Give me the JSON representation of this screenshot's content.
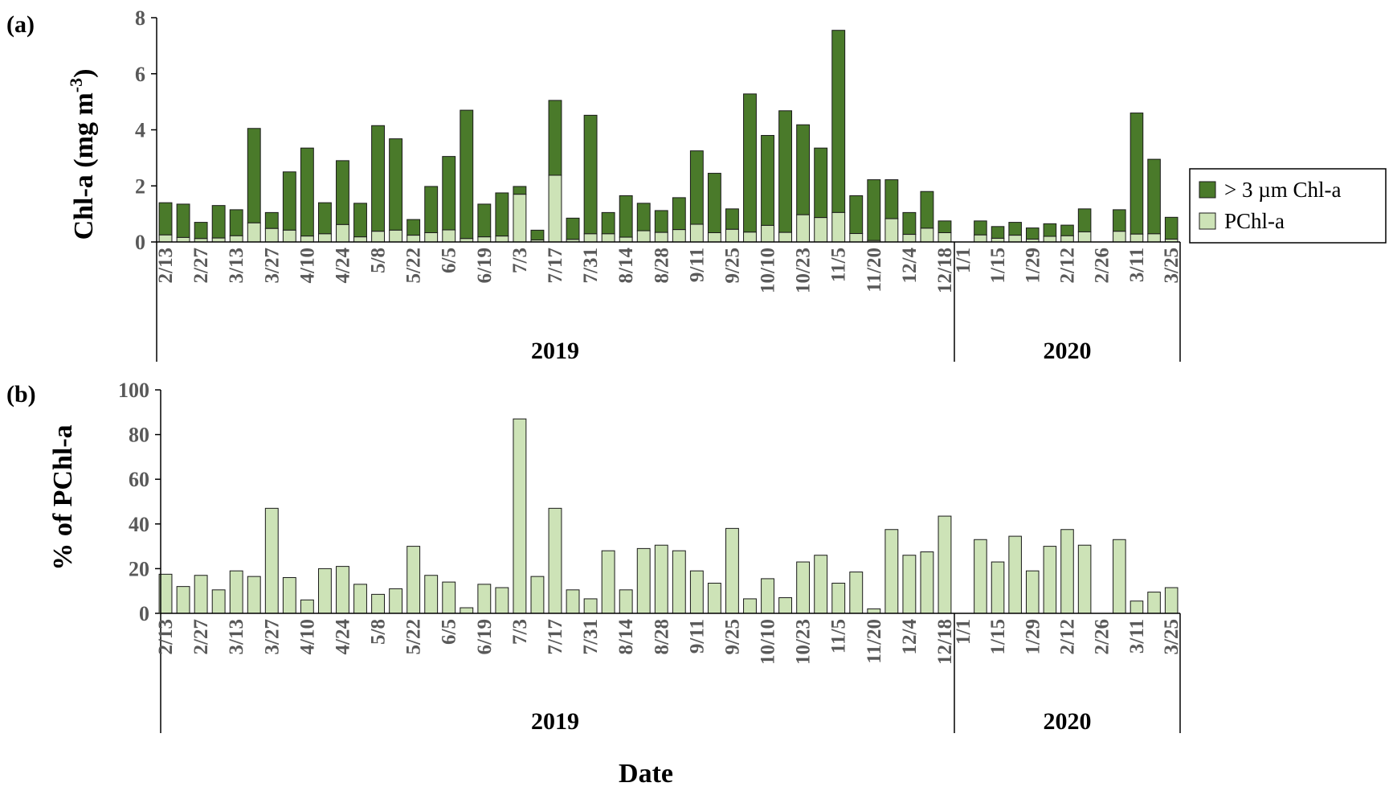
{
  "figure": {
    "xlabel": "Date"
  },
  "chart_data": [
    {
      "panel_label": "(a)",
      "type": "bar",
      "stacked": true,
      "ylabel_parts": [
        "Chl-a (mg m",
        "-3",
        ")"
      ],
      "ylim": [
        0,
        8
      ],
      "yticks": [
        0,
        2,
        4,
        6,
        8
      ],
      "legend_position": "right",
      "colors": {
        "large": "#4a7a2a",
        "pchl": "#cde3b7",
        "edge": "#1a1a1a"
      },
      "series": [
        {
          "name": "> 3 µm Chl-a",
          "key": "large"
        },
        {
          "name": "PChl-a",
          "key": "pchl"
        }
      ],
      "groups": [
        {
          "year": "2019",
          "tick_labels": [
            "2/13",
            "2/27",
            "3/13",
            "3/27",
            "4/10",
            "4/24",
            "5/8",
            "5/22",
            "6/5",
            "6/19",
            "7/3",
            "7/17",
            "7/31",
            "8/14",
            "8/28",
            "9/11",
            "9/25",
            "10/10",
            "10/23",
            "11/5",
            "11/20",
            "12/4",
            "12/18"
          ],
          "totals": [
            1.4,
            1.35,
            0.7,
            1.3,
            1.15,
            4.05,
            1.05,
            2.5,
            3.35,
            1.4,
            2.9,
            1.38,
            4.15,
            3.68,
            0.8,
            1.98,
            3.05,
            4.7,
            1.35,
            1.75,
            1.98,
            0.42,
            5.05,
            0.85,
            4.52,
            1.05,
            1.65,
            1.38,
            1.12,
            1.58,
            3.25,
            2.45,
            1.18,
            5.28,
            3.8,
            4.68,
            4.18,
            3.35,
            7.55,
            1.65,
            2.22,
            2.22,
            1.05,
            1.8,
            0.75
          ],
          "pchl": [
            0.25,
            0.16,
            0.12,
            0.14,
            0.22,
            0.68,
            0.48,
            0.42,
            0.21,
            0.29,
            0.62,
            0.18,
            0.38,
            0.42,
            0.24,
            0.33,
            0.43,
            0.12,
            0.18,
            0.21,
            1.7,
            0.07,
            2.38,
            0.09,
            0.29,
            0.29,
            0.17,
            0.4,
            0.34,
            0.44,
            0.63,
            0.33,
            0.45,
            0.35,
            0.59,
            0.34,
            0.97,
            0.87,
            1.05,
            0.3,
            0.05,
            0.83,
            0.27,
            0.49,
            0.33
          ]
        },
        {
          "year": "2020",
          "tick_labels": [
            "1/1",
            "1/15",
            "1/29",
            "2/12",
            "2/26",
            "3/11",
            "3/25"
          ],
          "totals": [
            0,
            0.75,
            0.55,
            0.7,
            0.5,
            0.65,
            0.6,
            1.18,
            0,
            1.15,
            4.6,
            2.95,
            0.88
          ],
          "pchl": [
            0,
            0.25,
            0.13,
            0.24,
            0.1,
            0.2,
            0.22,
            0.36,
            0,
            0.38,
            0.28,
            0.29,
            0.1
          ]
        }
      ]
    },
    {
      "panel_label": "(b)",
      "type": "bar",
      "ylabel": "% of PChl-a",
      "ylim": [
        0,
        100
      ],
      "yticks": [
        0,
        20,
        40,
        60,
        80,
        100
      ],
      "colors": {
        "bar": "#cde3b7",
        "edge": "#1a1a1a"
      },
      "groups": [
        {
          "year": "2019",
          "tick_labels": [
            "2/13",
            "2/27",
            "3/13",
            "3/27",
            "4/10",
            "4/24",
            "5/8",
            "5/22",
            "6/5",
            "6/19",
            "7/3",
            "7/17",
            "7/31",
            "8/14",
            "8/28",
            "9/11",
            "9/25",
            "10/10",
            "10/23",
            "11/5",
            "11/20",
            "12/4",
            "12/18"
          ],
          "values": [
            17.5,
            12,
            17,
            10.5,
            19,
            16.5,
            47,
            16,
            6,
            20,
            21,
            13,
            8.5,
            11,
            30,
            17,
            14,
            2.5,
            13,
            11.5,
            87,
            16.5,
            47,
            10.5,
            6.5,
            28,
            10.5,
            29,
            30.5,
            28,
            19,
            13.5,
            38,
            6.5,
            15.5,
            7,
            23,
            26,
            13.5,
            18.5,
            2,
            37.5,
            26,
            27.5,
            43.5
          ]
        },
        {
          "year": "2020",
          "tick_labels": [
            "1/1",
            "1/15",
            "1/29",
            "2/12",
            "2/26",
            "3/11",
            "3/25"
          ],
          "values": [
            0,
            33,
            23,
            34.5,
            19,
            30,
            37.5,
            30.5,
            0,
            33,
            5.5,
            9.5,
            11.5
          ]
        }
      ]
    }
  ]
}
